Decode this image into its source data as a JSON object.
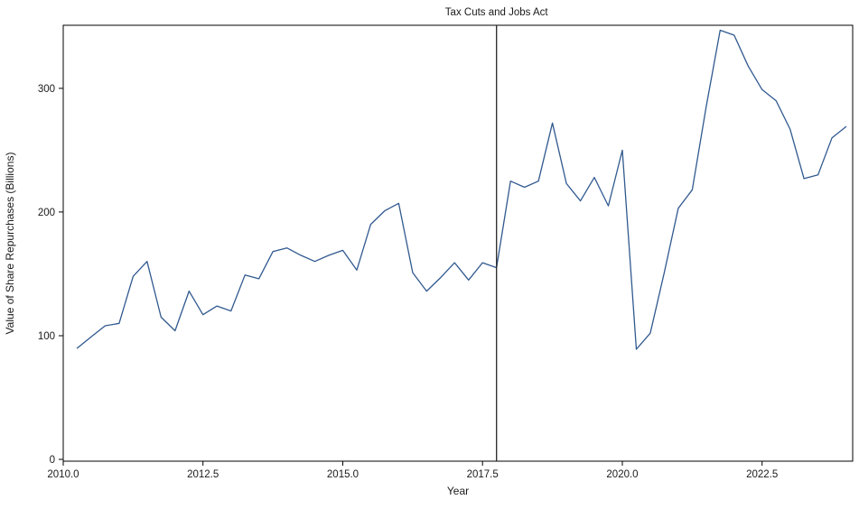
{
  "chart_data": {
    "type": "line",
    "title": "Tax Cuts and Jobs Act",
    "xlabel": "Year",
    "ylabel": "Value of Share Repurchases (Billions)",
    "x": [
      2010.25,
      2010.5,
      2010.75,
      2011.0,
      2011.25,
      2011.5,
      2011.75,
      2012.0,
      2012.25,
      2012.5,
      2012.75,
      2013.0,
      2013.25,
      2013.5,
      2013.75,
      2014.0,
      2014.25,
      2014.5,
      2014.75,
      2015.0,
      2015.25,
      2015.5,
      2015.75,
      2016.0,
      2016.25,
      2016.5,
      2016.75,
      2017.0,
      2017.25,
      2017.5,
      2017.75,
      2018.0,
      2018.25,
      2018.5,
      2018.75,
      2019.0,
      2019.25,
      2019.5,
      2019.75,
      2020.0,
      2020.25,
      2020.5,
      2020.75,
      2021.0,
      2021.25,
      2021.5,
      2021.75,
      2022.0,
      2022.25,
      2022.5,
      2022.75,
      2023.0,
      2023.25,
      2023.5,
      2023.75,
      2024.0
    ],
    "values": [
      90,
      99,
      108,
      110,
      148,
      160,
      115,
      104,
      136,
      117,
      124,
      120,
      149,
      146,
      168,
      171,
      165,
      160,
      165,
      169,
      153,
      190,
      201,
      207,
      151,
      136,
      147,
      159,
      145,
      159,
      155,
      225,
      220,
      225,
      272,
      223,
      209,
      228,
      205,
      250,
      89,
      102,
      151,
      203,
      218,
      285,
      347,
      343,
      318,
      299,
      290,
      267,
      227,
      230,
      260,
      269
    ],
    "xlim": [
      2010.0,
      2024.12
    ],
    "ylim": [
      0,
      351
    ],
    "x_ticks": {
      "values": [
        2010.0,
        2012.5,
        2015.0,
        2017.5,
        2020.0,
        2022.5
      ],
      "labels": [
        "2010.0",
        "2012.5",
        "2015.0",
        "2017.5",
        "2020.0",
        "2022.5"
      ]
    },
    "y_ticks": {
      "values": [
        0,
        100,
        200,
        300
      ],
      "labels": [
        "0",
        "100",
        "200",
        "300"
      ]
    },
    "grid": false,
    "legend": "none",
    "line_color": "#30598f",
    "frame_color": "#000000",
    "text_color": "#1a1a1a",
    "annotation": {
      "type": "vline",
      "x": 2017.75,
      "color": "#262626"
    }
  }
}
